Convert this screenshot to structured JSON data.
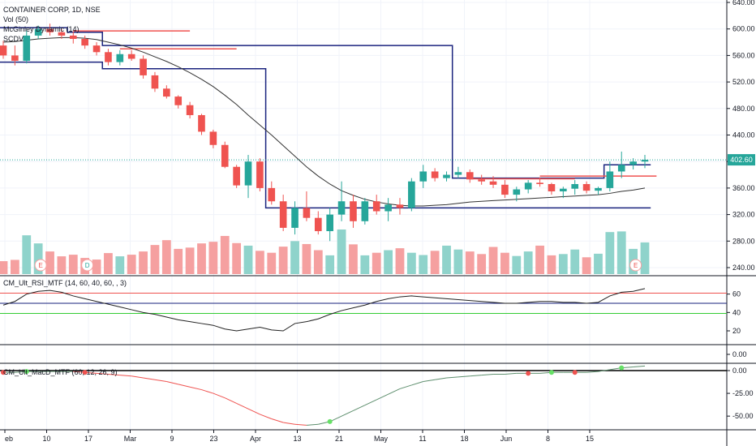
{
  "header": {
    "title": "CONTAINER CORP, 1D, NSE",
    "indicators": [
      "Vol (50)",
      "McGinley Dynamic (14)",
      "SCDV"
    ]
  },
  "last_price_label": "402.60",
  "colors": {
    "up": "#26a69a",
    "down": "#ef5350",
    "vol_up": "#8fd3cb",
    "vol_down": "#f5a0a0",
    "channel": "#1a237e",
    "resist": "#ef5350",
    "mcginley": "#333333"
  },
  "event_markers": [
    {
      "label": "E",
      "index": 3
    },
    {
      "label": "D",
      "index": 7
    },
    {
      "label": "E",
      "index": 54
    }
  ],
  "chart_data": [
    {
      "type": "candlestick",
      "name": "CONTAINER CORP, 1D, NSE",
      "y_axis_ticks": [
        "640.00",
        "600.00",
        "560.00",
        "520.00",
        "480.00",
        "440.00",
        "400.00",
        "360.00",
        "320.00",
        "280.00",
        "240.00"
      ],
      "ylim": [
        230,
        640
      ],
      "x_tick_labels": [
        "eb",
        "10",
        "17",
        "Mar",
        "9",
        "23",
        "Apr",
        "13",
        "21",
        "May",
        "11",
        "18",
        "Jun",
        "8",
        "15"
      ],
      "ohlc": [
        [
          575,
          582,
          555,
          560
        ],
        [
          560,
          575,
          545,
          552
        ],
        [
          552,
          598,
          548,
          590
        ],
        [
          590,
          605,
          585,
          600
        ],
        [
          600,
          608,
          590,
          595
        ],
        [
          595,
          600,
          585,
          590
        ],
        [
          590,
          596,
          578,
          585
        ],
        [
          585,
          590,
          570,
          575
        ],
        [
          575,
          580,
          560,
          565
        ],
        [
          565,
          570,
          545,
          550
        ],
        [
          550,
          568,
          545,
          562
        ],
        [
          562,
          568,
          552,
          555
        ],
        [
          555,
          560,
          525,
          530
        ],
        [
          530,
          535,
          505,
          510
        ],
        [
          510,
          515,
          495,
          498
        ],
        [
          498,
          500,
          480,
          485
        ],
        [
          485,
          490,
          465,
          470
        ],
        [
          470,
          472,
          440,
          445
        ],
        [
          445,
          448,
          420,
          425
        ],
        [
          425,
          430,
          390,
          392
        ],
        [
          392,
          395,
          360,
          364
        ],
        [
          364,
          410,
          345,
          400
        ],
        [
          400,
          405,
          355,
          360
        ],
        [
          360,
          370,
          335,
          340
        ],
        [
          340,
          350,
          295,
          300
        ],
        [
          300,
          340,
          290,
          330
        ],
        [
          330,
          355,
          310,
          315
        ],
        [
          315,
          325,
          290,
          295
        ],
        [
          295,
          330,
          280,
          320
        ],
        [
          320,
          370,
          310,
          340
        ],
        [
          340,
          350,
          300,
          310
        ],
        [
          310,
          345,
          305,
          340
        ],
        [
          340,
          350,
          320,
          325
        ],
        [
          325,
          345,
          310,
          335
        ],
        [
          335,
          345,
          320,
          330
        ],
        [
          330,
          375,
          325,
          370
        ],
        [
          370,
          395,
          360,
          385
        ],
        [
          385,
          390,
          370,
          375
        ],
        [
          375,
          385,
          370,
          380
        ],
        [
          380,
          392,
          375,
          384
        ],
        [
          384,
          388,
          368,
          373
        ],
        [
          373,
          380,
          365,
          370
        ],
        [
          370,
          378,
          360,
          365
        ],
        [
          365,
          372,
          345,
          350
        ],
        [
          350,
          362,
          340,
          358
        ],
        [
          358,
          372,
          352,
          368
        ],
        [
          368,
          376,
          362,
          366
        ],
        [
          366,
          368,
          350,
          355
        ],
        [
          355,
          362,
          345,
          359
        ],
        [
          359,
          372,
          350,
          366
        ],
        [
          366,
          370,
          352,
          356
        ],
        [
          356,
          362,
          350,
          360
        ],
        [
          360,
          400,
          355,
          385
        ],
        [
          385,
          415,
          375,
          395
        ],
        [
          395,
          405,
          388,
          400
        ],
        [
          400,
          410,
          390,
          402.6
        ]
      ],
      "volume": [
        40,
        44,
        120,
        95,
        70,
        55,
        60,
        50,
        45,
        65,
        55,
        60,
        70,
        90,
        105,
        78,
        82,
        95,
        100,
        118,
        96,
        88,
        72,
        66,
        85,
        102,
        93,
        74,
        58,
        138,
        92,
        58,
        66,
        74,
        80,
        66,
        59,
        72,
        88,
        76,
        70,
        62,
        84,
        66,
        56,
        70,
        88,
        58,
        62,
        76,
        52,
        63,
        130,
        132,
        78,
        98
      ],
      "mcginley_dynamic": [
        580,
        581,
        583,
        585,
        586,
        587,
        587,
        586,
        584,
        580,
        576,
        571,
        565,
        558,
        551,
        543,
        534,
        524,
        513,
        500,
        486,
        470,
        455,
        440,
        424,
        408,
        392,
        378,
        366,
        356,
        349,
        343,
        339,
        336,
        334,
        333,
        333,
        334,
        335,
        337,
        339,
        340,
        341,
        342,
        343,
        344,
        345,
        346,
        347,
        348,
        349,
        350,
        352,
        355,
        357,
        360
      ],
      "channel_upper": [
        602,
        602,
        602,
        602,
        602,
        602,
        595,
        595,
        595,
        575,
        575,
        575,
        575,
        575,
        575,
        575,
        575,
        575,
        575,
        575,
        575,
        575,
        575,
        575,
        575,
        575,
        575,
        575,
        575,
        575,
        575,
        575,
        575,
        575,
        575,
        575,
        575,
        575,
        575,
        375,
        375,
        375,
        375,
        375,
        375,
        375,
        375,
        375,
        375,
        375,
        375,
        375,
        395,
        395,
        395,
        395
      ],
      "channel_lower": [
        550,
        550,
        550,
        550,
        550,
        550,
        550,
        550,
        550,
        540,
        540,
        540,
        540,
        540,
        540,
        540,
        540,
        540,
        540,
        540,
        540,
        540,
        540,
        330,
        330,
        330,
        330,
        330,
        330,
        330,
        330,
        330,
        330,
        330,
        330,
        330,
        330,
        330,
        330,
        330,
        330,
        330,
        330,
        330,
        330,
        330,
        330,
        330,
        330,
        330,
        330,
        330,
        330,
        330,
        330,
        330
      ],
      "resistance_segments": [
        {
          "start": 6,
          "end": 16,
          "level": 597
        },
        {
          "start": 10,
          "end": 20,
          "level": 570
        },
        {
          "start": 40,
          "end": 49,
          "level": 374
        },
        {
          "start": 46,
          "end": 56,
          "level": 378
        }
      ]
    },
    {
      "type": "line",
      "name": "CM_Ult_RSI_MTF (14, 60, 40, 60, , 3)",
      "y_axis_ticks": [
        "60",
        "40",
        "20"
      ],
      "ylim": [
        5,
        80
      ],
      "x_tick_labels": [],
      "hlines": [
        {
          "value": 61,
          "color": "#ef5350"
        },
        {
          "value": 50,
          "color": "#1a237e"
        },
        {
          "value": 39,
          "color": "#33cc33"
        }
      ],
      "values": [
        48,
        52,
        60,
        63,
        64,
        62,
        58,
        55,
        52,
        49,
        46,
        43,
        40,
        38,
        35,
        32,
        30,
        28,
        26,
        22,
        20,
        22,
        24,
        21,
        20,
        28,
        30,
        33,
        38,
        42,
        45,
        48,
        52,
        55,
        57,
        58,
        57,
        56,
        55,
        54,
        53,
        52,
        51,
        50,
        50,
        51,
        52,
        52,
        51,
        51,
        50,
        51,
        58,
        62,
        63,
        66
      ]
    },
    {
      "type": "line",
      "name": "",
      "y_axis_ticks": [
        "0.00"
      ],
      "ylim": [
        -1,
        1
      ],
      "x_tick_labels": [],
      "values": []
    },
    {
      "type": "line",
      "name": "CM_Ult_MacD_MTF (60, 12, 26, 9)",
      "y_axis_ticks": [
        "0.00",
        "-25.00",
        "-50.00"
      ],
      "ylim": [
        -65,
        8
      ],
      "x_tick_labels": [],
      "hlines": [
        {
          "value": 0,
          "color": "#000000"
        }
      ],
      "values": [
        -2,
        -2,
        -1,
        -1,
        -1,
        -1,
        -1,
        -2,
        -3,
        -4,
        -5,
        -6,
        -8,
        -10,
        -12,
        -15,
        -18,
        -21,
        -25,
        -30,
        -36,
        -42,
        -48,
        -53,
        -57,
        -59,
        -60,
        -59,
        -56,
        -50,
        -44,
        -38,
        -32,
        -26,
        -20,
        -16,
        -12,
        -10,
        -8,
        -7,
        -6,
        -5,
        -4,
        -4,
        -3,
        -3,
        -3,
        -2,
        -2,
        -2,
        -2,
        -1,
        1,
        3,
        4,
        5
      ],
      "cross_dots": [
        {
          "index": 0,
          "color": "#ef5350"
        },
        {
          "index": 2,
          "color": "#66e066"
        },
        {
          "index": 7,
          "color": "#ef5350"
        },
        {
          "index": 28,
          "color": "#66e066"
        },
        {
          "index": 45,
          "color": "#ef5350"
        },
        {
          "index": 47,
          "color": "#66e066"
        },
        {
          "index": 49,
          "color": "#ef5350"
        },
        {
          "index": 53,
          "color": "#66e066"
        }
      ]
    }
  ]
}
